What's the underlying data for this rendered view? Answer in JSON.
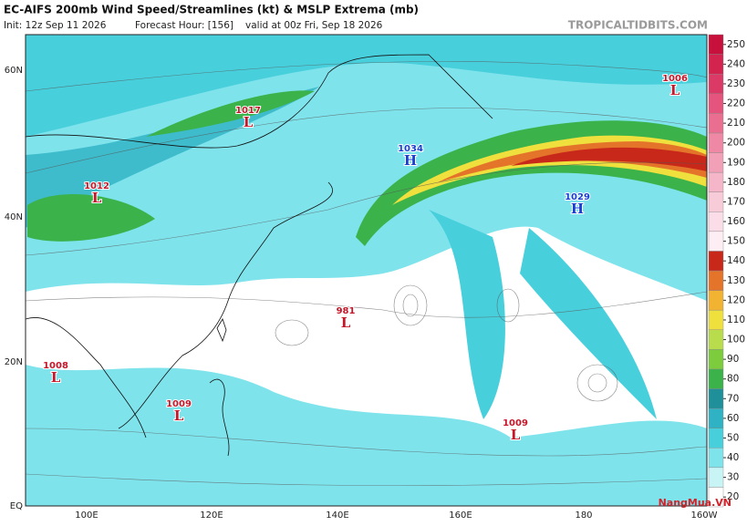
{
  "header": {
    "title": "EC-AIFS 200mb Wind Speed/Streamlines (kt) & MSLP Extrema (mb)",
    "init": "Init: 12z Sep 11 2026",
    "forecast_hour": "Forecast Hour: [156]",
    "valid": "valid at 00z Fri, Sep 18 2026",
    "brand": "TROPICALTIDBITS.COM"
  },
  "map": {
    "lat_labels": [
      "60N",
      "40N",
      "20N",
      "EQ"
    ],
    "lon_labels": [
      "100E",
      "120E",
      "140E",
      "160E",
      "180",
      "160W"
    ],
    "pressure_centers": [
      {
        "symbol": "L",
        "value": "1006"
      },
      {
        "symbol": "L",
        "value": "1017"
      },
      {
        "symbol": "H",
        "value": "1034"
      },
      {
        "symbol": "L",
        "value": "1012"
      },
      {
        "symbol": "H",
        "value": "1029"
      },
      {
        "symbol": "L",
        "value": "981"
      },
      {
        "symbol": "L",
        "value": "1008"
      },
      {
        "symbol": "L",
        "value": "1009"
      },
      {
        "symbol": "L",
        "value": "1009"
      }
    ]
  },
  "colorbar": {
    "ticks": [
      20,
      30,
      40,
      50,
      60,
      70,
      80,
      90,
      100,
      110,
      120,
      130,
      140,
      150,
      160,
      170,
      180,
      190,
      200,
      210,
      220,
      230,
      240,
      250
    ],
    "colors": [
      "#ffffff",
      "#c8f4f6",
      "#7fe3ec",
      "#48cfdc",
      "#2eb2c4",
      "#1f9099",
      "#3bb34a",
      "#7ccc3e",
      "#b9dc4c",
      "#efe03e",
      "#f2b232",
      "#e4742a",
      "#c8281a",
      "#fdeef3",
      "#fbdde7",
      "#f8cbd9",
      "#f5b6c9",
      "#f2a0b8",
      "#ee88a5",
      "#e96e90",
      "#e4547c",
      "#dc3a66",
      "#d32450",
      "#c8103c"
    ]
  },
  "watermark": "NangMua.VN"
}
